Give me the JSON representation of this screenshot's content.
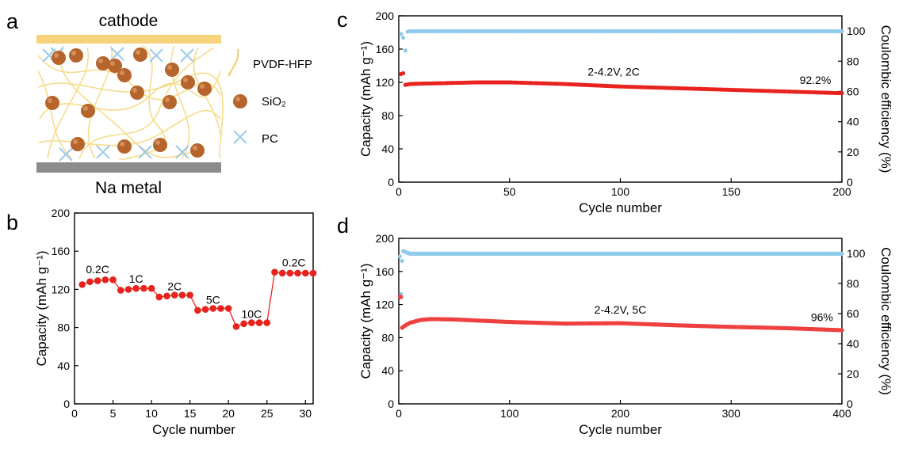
{
  "panels": {
    "a": {
      "letter": "a",
      "top_label": "cathode",
      "bottom_label": "Na metal",
      "legend": [
        {
          "icon": "fiber-icon",
          "label": "PVDF-HFP"
        },
        {
          "icon": "sphere-icon",
          "label": "SiO₂"
        },
        {
          "icon": "cross-icon",
          "label": "PC"
        }
      ],
      "colors": {
        "cathode": "#F6D27A",
        "anode": "#8C8C8C",
        "fiber": "#F6DC8A",
        "sphere": "#B5652C",
        "cross": "#9CCBEA"
      }
    },
    "b": {
      "letter": "b"
    },
    "c": {
      "letter": "c"
    },
    "d": {
      "letter": "d"
    }
  },
  "chart_data": [
    {
      "id": "b",
      "type": "scatter",
      "xlabel": "Cycle number",
      "ylabel": "Capacity (mAh g⁻¹)",
      "xlim": [
        0,
        31
      ],
      "ylim": [
        0,
        200
      ],
      "xticks": [
        0,
        5,
        10,
        15,
        20,
        25,
        30
      ],
      "yticks": [
        0,
        40,
        80,
        120,
        160,
        200
      ],
      "series": [
        {
          "color": "#E8231E",
          "x": [
            1,
            2,
            3,
            4,
            5,
            6,
            7,
            8,
            9,
            10,
            11,
            12,
            13,
            14,
            15,
            16,
            17,
            18,
            19,
            20,
            21,
            22,
            23,
            24,
            25,
            26,
            27,
            28,
            29,
            30,
            31
          ],
          "y": [
            125,
            128,
            129,
            130,
            130,
            119,
            120,
            121,
            121,
            121,
            112,
            113,
            114,
            114,
            114,
            98,
            99,
            100,
            100,
            100,
            81,
            84,
            85,
            85,
            85,
            138,
            137,
            137,
            137,
            137,
            137
          ]
        }
      ],
      "annotations": [
        {
          "text": "0.2C",
          "x": 3.0,
          "y": 137
        },
        {
          "text": "1C",
          "x": 8.0,
          "y": 127
        },
        {
          "text": "2C",
          "x": 13.0,
          "y": 119
        },
        {
          "text": "5C",
          "x": 18.0,
          "y": 105
        },
        {
          "text": "10C",
          "x": 23.0,
          "y": 90
        },
        {
          "text": "0.2C",
          "x": 28.5,
          "y": 144
        }
      ]
    },
    {
      "id": "c",
      "type": "scatter",
      "xlabel": "Cycle number",
      "ylabel": "Capacity (mAh g⁻¹)",
      "y2label": "Coulombic efficiency (%)",
      "xlim": [
        0,
        200
      ],
      "ylim": [
        0,
        200
      ],
      "y2lim": [
        0,
        110
      ],
      "xticks": [
        0,
        50,
        100,
        150,
        200
      ],
      "yticks": [
        0,
        40,
        80,
        120,
        160,
        200
      ],
      "y2ticks": [
        0,
        20,
        40,
        60,
        80,
        100
      ],
      "capacity": {
        "color": "#E8231E",
        "x": [
          1,
          2,
          3,
          5,
          10,
          20,
          35,
          50,
          75,
          100,
          125,
          150,
          175,
          200
        ],
        "y": [
          130,
          131,
          117,
          118,
          118.5,
          119,
          120,
          120,
          118,
          115,
          113,
          111,
          109,
          107
        ]
      },
      "efficiency": {
        "color": "#8FCBEA",
        "x": [
          1,
          2,
          3,
          4,
          5,
          10,
          50,
          100,
          150,
          200
        ],
        "y": [
          98,
          95.5,
          87,
          99.5,
          99.8,
          99.8,
          99.8,
          99.8,
          99.8,
          99.8
        ]
      },
      "annotations": [
        {
          "text": "2-4.2V, 2C",
          "x": 97,
          "y": 128
        },
        {
          "text": "92.2%",
          "x": 188,
          "y": 118
        }
      ]
    },
    {
      "id": "d",
      "type": "scatter",
      "xlabel": "Cycle number",
      "ylabel": "Capacity (mAh g⁻¹)",
      "y2label": "Coulombic efficiency (%)",
      "xlim": [
        0,
        400
      ],
      "ylim": [
        0,
        200
      ],
      "y2lim": [
        0,
        110
      ],
      "xticks": [
        0,
        100,
        200,
        300,
        400
      ],
      "yticks": [
        0,
        40,
        80,
        120,
        160,
        200
      ],
      "y2ticks": [
        0,
        20,
        40,
        60,
        80,
        100
      ],
      "capacity": {
        "color": "#EF4040",
        "x": [
          1,
          2,
          3,
          5,
          10,
          20,
          30,
          50,
          100,
          150,
          200,
          250,
          300,
          350,
          400
        ],
        "y": [
          130,
          129,
          92,
          94,
          98,
          101.5,
          102.5,
          102,
          99,
          97,
          97.5,
          95,
          93,
          91.5,
          89
        ]
      },
      "efficiency": {
        "color": "#8FCBEA",
        "x": [
          1,
          2,
          3,
          4,
          6,
          10,
          50,
          100,
          200,
          300,
          400
        ],
        "y": [
          98,
          73,
          95,
          101.5,
          101,
          99.8,
          99.8,
          99.8,
          99.8,
          99.8,
          99.8
        ]
      },
      "annotations": [
        {
          "text": "2-4.2V, 5C",
          "x": 200,
          "y": 109
        },
        {
          "text": "96%",
          "x": 382,
          "y": 100
        }
      ]
    }
  ]
}
